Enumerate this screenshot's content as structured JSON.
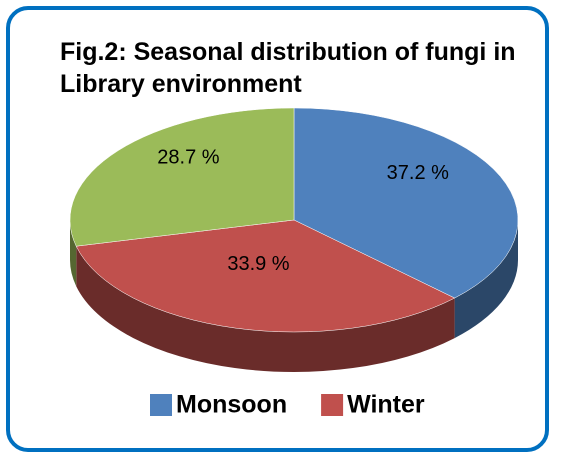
{
  "chart_data": {
    "type": "pie",
    "title": "Fig.2: Seasonal distribution of fungi in Library environment",
    "categories": [
      "Monsoon",
      "Winter",
      null
    ],
    "values": [
      37.2,
      33.9,
      28.7
    ],
    "value_labels": [
      "37.2 %",
      "33.9 %",
      "28.7 %"
    ],
    "colors": [
      "#4f81bd",
      "#c0504d",
      "#9bbb59"
    ],
    "legend": "bottom"
  }
}
